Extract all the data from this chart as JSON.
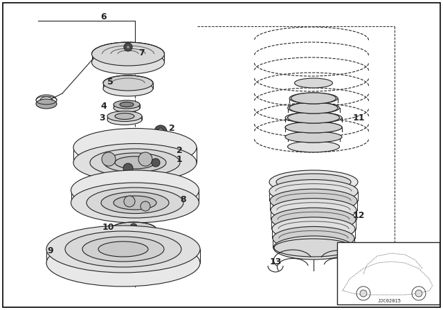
{
  "background_color": "#ffffff",
  "border_color": "#000000",
  "figsize": [
    6.4,
    4.48
  ],
  "dpi": 100,
  "gray": "#222222",
  "lgray": "#999999",
  "mgray": "#bbbbbb",
  "dgray": "#555555"
}
